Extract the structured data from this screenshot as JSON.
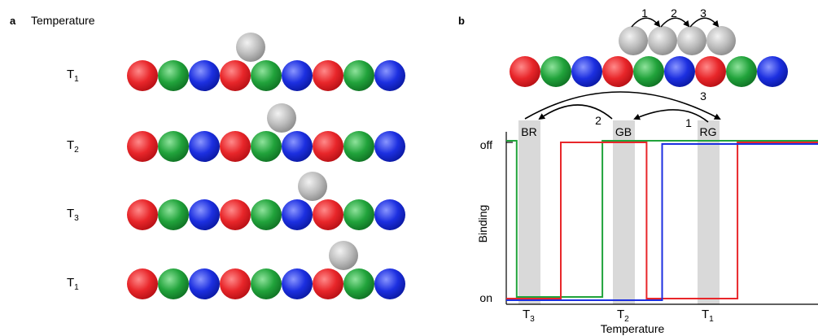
{
  "panel_a": {
    "letter": "a",
    "title": "Temperature",
    "rows": [
      {
        "temp": "T",
        "sub": "1",
        "ball_slot": 3.5
      },
      {
        "temp": "T",
        "sub": "2",
        "ball_slot": 4.5
      },
      {
        "temp": "T",
        "sub": "3",
        "ball_slot": 5.5
      },
      {
        "temp": "T",
        "sub": "1",
        "ball_slot": 6.5
      }
    ],
    "bead_sequence": [
      "red",
      "green",
      "blue",
      "red",
      "green",
      "blue",
      "red",
      "green",
      "blue"
    ]
  },
  "panel_b": {
    "letter": "b",
    "steps": [
      "1",
      "2",
      "3"
    ],
    "bead_sequence": [
      "red",
      "green",
      "blue",
      "red",
      "green",
      "blue",
      "red",
      "green",
      "blue"
    ],
    "arc_labels": [
      {
        "text": "1"
      },
      {
        "text": "2"
      },
      {
        "text": "3"
      }
    ],
    "bands": [
      {
        "label": "BR"
      },
      {
        "label": "GB"
      },
      {
        "label": "RG"
      }
    ],
    "y_tick_off": "off",
    "y_tick_on": "on",
    "ylabel": "Binding",
    "xlabel": "Temperature",
    "x_ticks": [
      {
        "temp": "T",
        "sub": "3"
      },
      {
        "temp": "T",
        "sub": "2"
      },
      {
        "temp": "T",
        "sub": "1"
      }
    ]
  },
  "colors": {
    "red": "#e8262a",
    "green": "#21a33b",
    "blue": "#1c2fe0",
    "gray": "#bdbdbd",
    "band": "#d9d9d9"
  },
  "chart_data": {
    "type": "line",
    "xlabel": "Temperature",
    "ylabel": "Binding",
    "y_states": [
      "on",
      "off"
    ],
    "x_marks": [
      "T3",
      "T2",
      "T1"
    ],
    "series": [
      {
        "name": "",
        "color": "green",
        "x": [
          0,
          0.4,
          0.4,
          3.7,
          3.7,
          12
        ],
        "y": [
          "off",
          "off",
          "on",
          "on",
          "off",
          "off"
        ]
      },
      {
        "name": "",
        "color": "red",
        "x": [
          0,
          2.1,
          2.1,
          5.4,
          5.4,
          8.9,
          8.9,
          12
        ],
        "y": [
          "on",
          "on",
          "off",
          "off",
          "on",
          "on",
          "off",
          "off"
        ]
      },
      {
        "name": "",
        "color": "blue",
        "x": [
          0,
          6.0,
          6.0,
          12
        ],
        "y": [
          "on",
          "on",
          "off",
          "off"
        ]
      }
    ]
  }
}
